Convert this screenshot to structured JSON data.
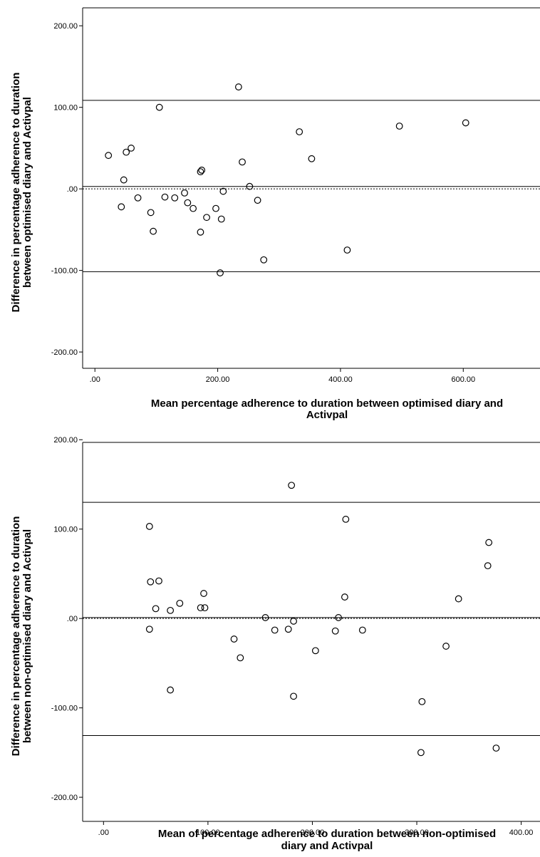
{
  "chart_data": [
    {
      "type": "scatter",
      "title": "",
      "xlabel_lines": [
        "Mean percentage adherence to duration between optimised diary and",
        "Activpal"
      ],
      "ylabel_lines": [
        "Difference in percentage adherence to duration",
        "between optimised diary and Activpal"
      ],
      "xlim": [
        -20,
        725
      ],
      "ylim": [
        -220,
        222
      ],
      "xticks": [
        {
          "value": 0,
          "label": ".00"
        },
        {
          "value": 200,
          "label": "200.00"
        },
        {
          "value": 400,
          "label": "400.00"
        },
        {
          "value": 600,
          "label": "600.00"
        }
      ],
      "yticks": [
        {
          "value": 200,
          "label": "200.00"
        },
        {
          "value": 100,
          "label": "100.00"
        },
        {
          "value": 0,
          "label": ".00"
        },
        {
          "value": -100,
          "label": "-100.00"
        },
        {
          "value": -200,
          "label": "-200.00"
        }
      ],
      "reference_lines": [
        {
          "value": 108.5,
          "style": "solid"
        },
        {
          "value": 3,
          "style": "solid"
        },
        {
          "value": 0,
          "style": "dotted"
        },
        {
          "value": -101.5,
          "style": "solid"
        }
      ],
      "grid": false,
      "points": [
        {
          "x": 22,
          "y": 41
        },
        {
          "x": 47,
          "y": 11
        },
        {
          "x": 51,
          "y": 45
        },
        {
          "x": 59,
          "y": 50
        },
        {
          "x": 43,
          "y": -22
        },
        {
          "x": 70,
          "y": -11
        },
        {
          "x": 91,
          "y": -29
        },
        {
          "x": 95,
          "y": -52
        },
        {
          "x": 105,
          "y": 100
        },
        {
          "x": 114,
          "y": -10
        },
        {
          "x": 130,
          "y": -11
        },
        {
          "x": 146,
          "y": -5
        },
        {
          "x": 151,
          "y": -17
        },
        {
          "x": 160,
          "y": -24
        },
        {
          "x": 172,
          "y": 21
        },
        {
          "x": 174,
          "y": 23
        },
        {
          "x": 172,
          "y": -53
        },
        {
          "x": 182,
          "y": -35
        },
        {
          "x": 197,
          "y": -24
        },
        {
          "x": 204,
          "y": -103
        },
        {
          "x": 206,
          "y": -37
        },
        {
          "x": 209,
          "y": -3
        },
        {
          "x": 234,
          "y": 125
        },
        {
          "x": 240,
          "y": 33
        },
        {
          "x": 252,
          "y": 3
        },
        {
          "x": 265,
          "y": -14
        },
        {
          "x": 275,
          "y": -87
        },
        {
          "x": 333,
          "y": 70
        },
        {
          "x": 353,
          "y": 37
        },
        {
          "x": 411,
          "y": -75
        },
        {
          "x": 496,
          "y": 77
        },
        {
          "x": 604,
          "y": 81
        }
      ]
    },
    {
      "type": "scatter",
      "title": "",
      "xlabel_lines": [
        "Mean of percentage adherence to duration between non-optimised",
        "diary and Activpal"
      ],
      "ylabel_lines": [
        "Difference in percentage adherence to duration",
        "between non-optimised diary and Activpal"
      ],
      "xlim": [
        -20,
        418
      ],
      "ylim": [
        -227,
        197
      ],
      "xticks": [
        {
          "value": 0,
          "label": ".00"
        },
        {
          "value": 100,
          "label": "100.00"
        },
        {
          "value": 200,
          "label": "200.00"
        },
        {
          "value": 300,
          "label": "300.00"
        },
        {
          "value": 400,
          "label": "400.00"
        }
      ],
      "yticks": [
        {
          "value": 200,
          "label": "200.00"
        },
        {
          "value": 100,
          "label": "100.00"
        },
        {
          "value": 0,
          "label": ".00"
        },
        {
          "value": -100,
          "label": "-100.00"
        },
        {
          "value": -200,
          "label": "-200.00"
        }
      ],
      "reference_lines": [
        {
          "value": 130,
          "style": "solid"
        },
        {
          "value": 1,
          "style": "solid"
        },
        {
          "value": 0,
          "style": "dotted"
        },
        {
          "value": -131,
          "style": "solid"
        }
      ],
      "grid": false,
      "points": [
        {
          "x": 44,
          "y": 103
        },
        {
          "x": 45,
          "y": 41
        },
        {
          "x": 53,
          "y": 42
        },
        {
          "x": 50,
          "y": 11
        },
        {
          "x": 44,
          "y": -12
        },
        {
          "x": 64,
          "y": 9
        },
        {
          "x": 64,
          "y": -80
        },
        {
          "x": 73,
          "y": 17
        },
        {
          "x": 93,
          "y": 12
        },
        {
          "x": 97,
          "y": 12
        },
        {
          "x": 96,
          "y": 28
        },
        {
          "x": 125,
          "y": -23
        },
        {
          "x": 131,
          "y": -44
        },
        {
          "x": 155,
          "y": 1
        },
        {
          "x": 164,
          "y": -13
        },
        {
          "x": 177,
          "y": -12
        },
        {
          "x": 180,
          "y": 149
        },
        {
          "x": 182,
          "y": -3
        },
        {
          "x": 182,
          "y": -87
        },
        {
          "x": 203,
          "y": -36
        },
        {
          "x": 222,
          "y": -14
        },
        {
          "x": 225,
          "y": 1
        },
        {
          "x": 231,
          "y": 24
        },
        {
          "x": 232,
          "y": 111
        },
        {
          "x": 248,
          "y": -13
        },
        {
          "x": 304,
          "y": -150
        },
        {
          "x": 305,
          "y": -93
        },
        {
          "x": 328,
          "y": -31
        },
        {
          "x": 340,
          "y": 22
        },
        {
          "x": 368,
          "y": 59
        },
        {
          "x": 369,
          "y": 85
        },
        {
          "x": 376,
          "y": -145
        }
      ]
    }
  ]
}
